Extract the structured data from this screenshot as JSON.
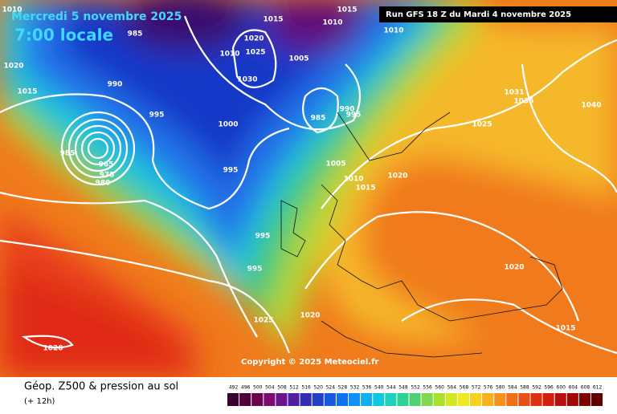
{
  "header": {
    "date": "Mercredi 5 novembre 2025",
    "time": "7:00 locale",
    "run": "Run GFS 18 Z du Mardi 4 novembre 2025"
  },
  "map": {
    "isobar_labels": [
      "1010",
      "985",
      "1015",
      "1015",
      "1010",
      "1010",
      "1020",
      "1025",
      "1010",
      "1005",
      "1020",
      "1015",
      "990",
      "1030",
      "990",
      "995",
      "985",
      "995",
      "1000",
      "1031",
      "1035",
      "1040",
      "1025",
      "985",
      "975",
      "980",
      "965",
      "995",
      "1005",
      "1020",
      "1010",
      "1015",
      "995",
      "995",
      "1020",
      "1025",
      "1020",
      "1015",
      "1020"
    ],
    "copyright": "Copyright © 2025 Meteociel.fr"
  },
  "footer": {
    "title": "Géop. Z500 & pression au sol",
    "lead": "(+ 12h)",
    "legend": [
      "492",
      "496",
      "500",
      "504",
      "508",
      "512",
      "516",
      "520",
      "524",
      "528",
      "532",
      "536",
      "540",
      "544",
      "548",
      "552",
      "556",
      "560",
      "564",
      "568",
      "572",
      "576",
      "580",
      "584",
      "588",
      "592",
      "596",
      "600",
      "604",
      "608",
      "612"
    ]
  }
}
